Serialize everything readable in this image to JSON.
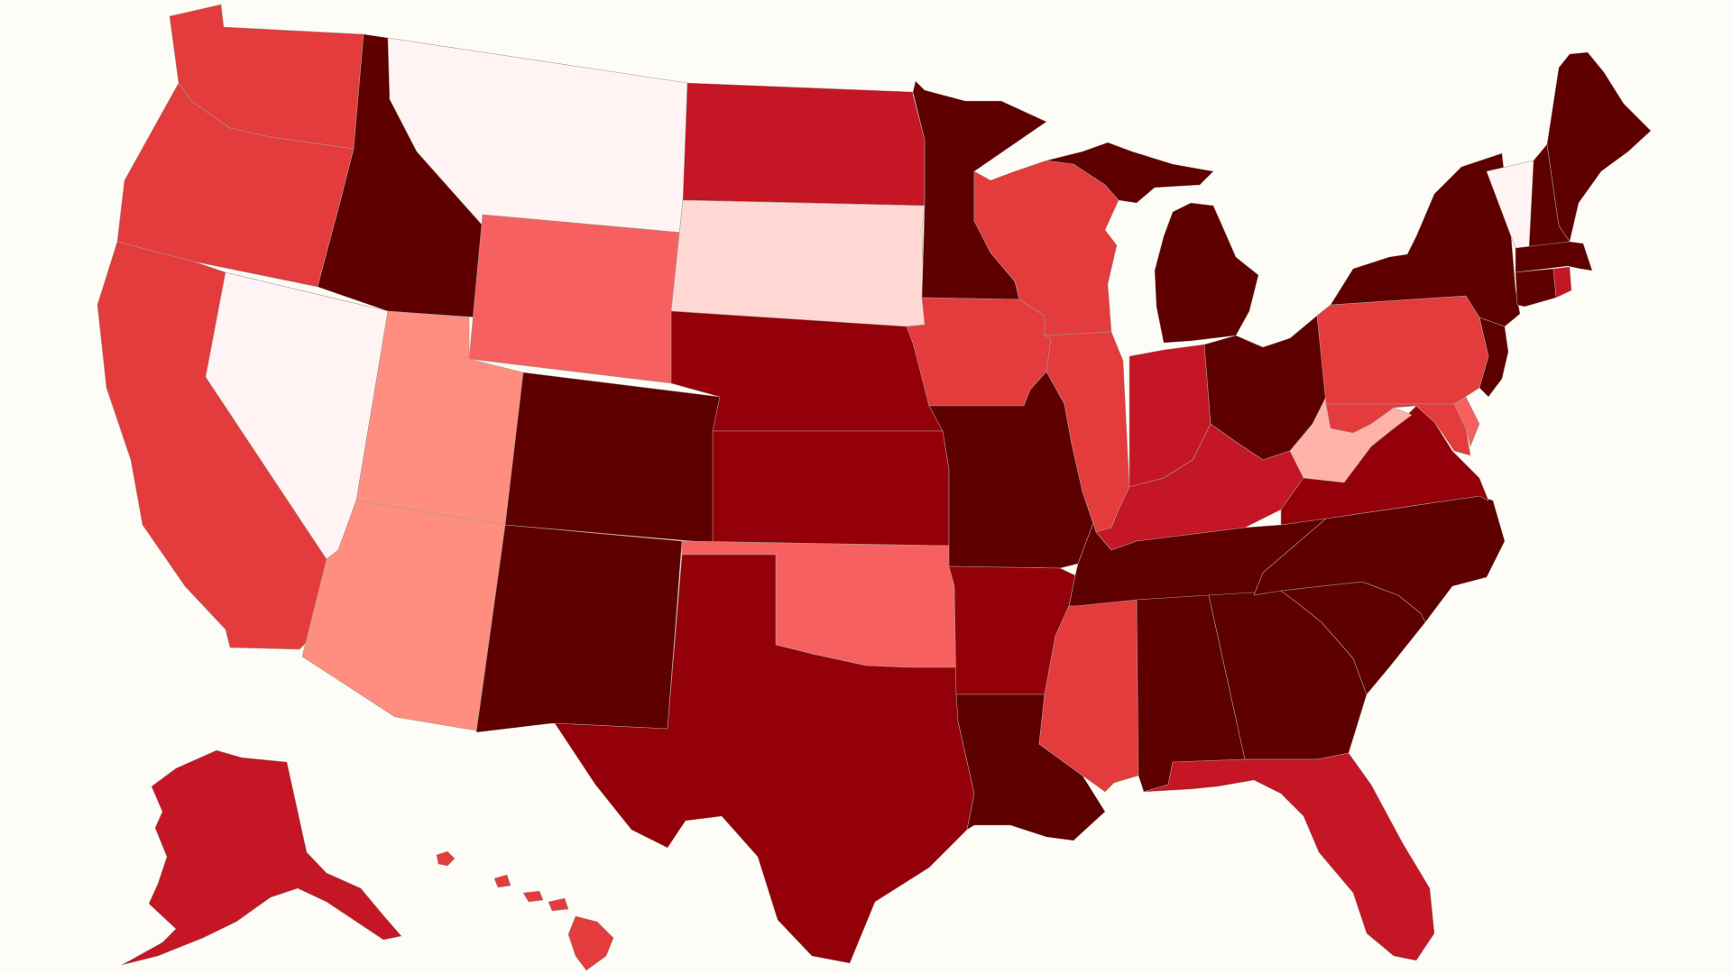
{
  "map": {
    "background": "#fdfcf6",
    "border_color": "#a89a92",
    "palette": {
      "c0": "#fff3f3",
      "c1": "#ffd7d3",
      "c2": "#ffb2a8",
      "c3": "#ff8e80",
      "c4": "#f76060",
      "c5": "#e43b3d",
      "c6": "#c41624",
      "c7": "#940009",
      "c8": "#5e0000"
    },
    "states": [
      {
        "id": "WA",
        "level": "c5"
      },
      {
        "id": "OR",
        "level": "c5"
      },
      {
        "id": "CA",
        "level": "c5"
      },
      {
        "id": "NV",
        "level": "c0"
      },
      {
        "id": "ID",
        "level": "c8"
      },
      {
        "id": "MT",
        "level": "c0"
      },
      {
        "id": "WY",
        "level": "c4"
      },
      {
        "id": "UT",
        "level": "c3"
      },
      {
        "id": "AZ",
        "level": "c3"
      },
      {
        "id": "CO",
        "level": "c8"
      },
      {
        "id": "NM",
        "level": "c8"
      },
      {
        "id": "ND",
        "level": "c6"
      },
      {
        "id": "SD",
        "level": "c1"
      },
      {
        "id": "NE",
        "level": "c7"
      },
      {
        "id": "KS",
        "level": "c7"
      },
      {
        "id": "OK",
        "level": "c4"
      },
      {
        "id": "TX",
        "level": "c7"
      },
      {
        "id": "MN",
        "level": "c8"
      },
      {
        "id": "IA",
        "level": "c5"
      },
      {
        "id": "MO",
        "level": "c8"
      },
      {
        "id": "AR",
        "level": "c7"
      },
      {
        "id": "LA",
        "level": "c8"
      },
      {
        "id": "WI",
        "level": "c5"
      },
      {
        "id": "IL",
        "level": "c5"
      },
      {
        "id": "MI",
        "level": "c8"
      },
      {
        "id": "IN",
        "level": "c6"
      },
      {
        "id": "OH",
        "level": "c8"
      },
      {
        "id": "KY",
        "level": "c6"
      },
      {
        "id": "TN",
        "level": "c8"
      },
      {
        "id": "MS",
        "level": "c5"
      },
      {
        "id": "AL",
        "level": "c8"
      },
      {
        "id": "GA",
        "level": "c8"
      },
      {
        "id": "FL",
        "level": "c6"
      },
      {
        "id": "SC",
        "level": "c8"
      },
      {
        "id": "NC",
        "level": "c8"
      },
      {
        "id": "VA",
        "level": "c7"
      },
      {
        "id": "WV",
        "level": "c2"
      },
      {
        "id": "PA",
        "level": "c5"
      },
      {
        "id": "NY",
        "level": "c8"
      },
      {
        "id": "VT",
        "level": "c0"
      },
      {
        "id": "NH",
        "level": "c8"
      },
      {
        "id": "ME",
        "level": "c8"
      },
      {
        "id": "MA",
        "level": "c8"
      },
      {
        "id": "CT",
        "level": "c8"
      },
      {
        "id": "RI",
        "level": "c6"
      },
      {
        "id": "NJ",
        "level": "c8"
      },
      {
        "id": "DE",
        "level": "c4"
      },
      {
        "id": "MD",
        "level": "c5"
      },
      {
        "id": "AK",
        "level": "c6"
      },
      {
        "id": "HI",
        "level": "c5"
      }
    ]
  }
}
